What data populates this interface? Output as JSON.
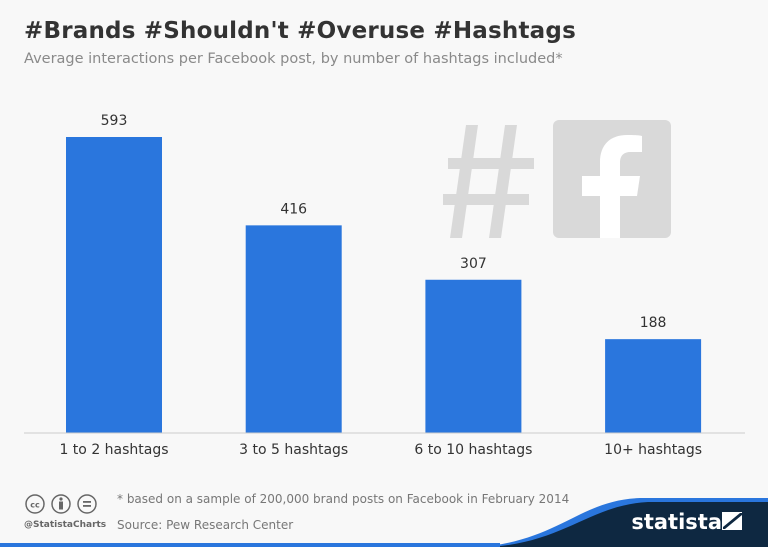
{
  "chart_data": {
    "type": "bar",
    "title": "#Brands #Shouldn't #Overuse #Hashtags",
    "subtitle": "Average interactions per Facebook post, by number of hashtags included*",
    "categories": [
      "1 to 2 hashtags",
      "3 to 5 hashtags",
      "6 to 10 hashtags",
      "10+ hashtags"
    ],
    "values": [
      593,
      416,
      307,
      188
    ],
    "xlabel": "",
    "ylabel": "",
    "ylim": [
      0,
      650
    ],
    "grid": false,
    "bar_color": "#2a76dd"
  },
  "footer": {
    "note": "* based on a sample of 200,000 brand posts on Facebook in February 2014",
    "source": "Source: Pew Research Center",
    "handle": "@StatistaCharts",
    "brand": "statista",
    "icons": [
      "cc-icon",
      "attribution-icon",
      "no-derivatives-icon"
    ]
  },
  "decor_icons": [
    "hashtag-icon",
    "facebook-icon"
  ]
}
